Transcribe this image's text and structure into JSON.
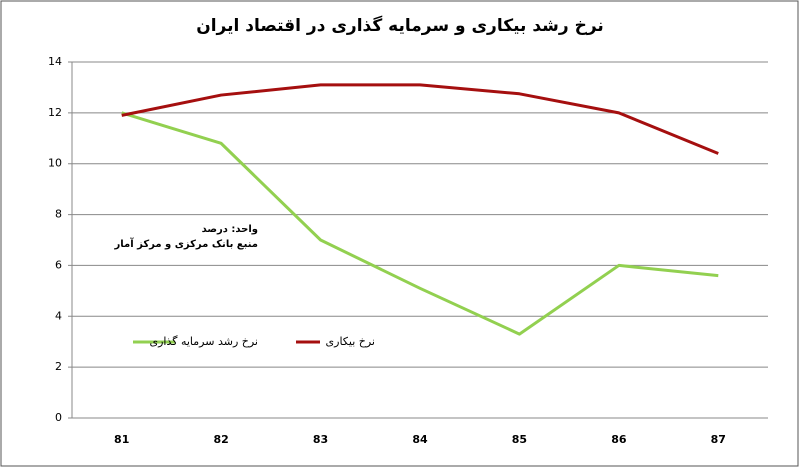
{
  "chart_data": {
    "type": "line",
    "title": "نرخ رشد بیکاری و سرمایه گذاری در اقتصاد ایران",
    "annotations": [
      "واحد: درصد",
      "منبع بانک مرکزی و مرکز آمار"
    ],
    "categories": [
      "81",
      "82",
      "83",
      "84",
      "85",
      "86",
      "87"
    ],
    "series": [
      {
        "name": "نرخ رشد سرمایه گذاری",
        "color": "#92d050",
        "values": [
          12.0,
          10.8,
          7.0,
          5.1,
          3.3,
          6.0,
          5.6
        ]
      },
      {
        "name": "نرخ بیکاری",
        "color": "#a50f0f",
        "values": [
          11.9,
          12.7,
          13.1,
          13.1,
          12.75,
          12.0,
          10.4
        ]
      }
    ],
    "ylim": [
      0,
      14
    ],
    "yticks": [
      0,
      2,
      4,
      6,
      8,
      10,
      12,
      14
    ],
    "grid": true
  }
}
